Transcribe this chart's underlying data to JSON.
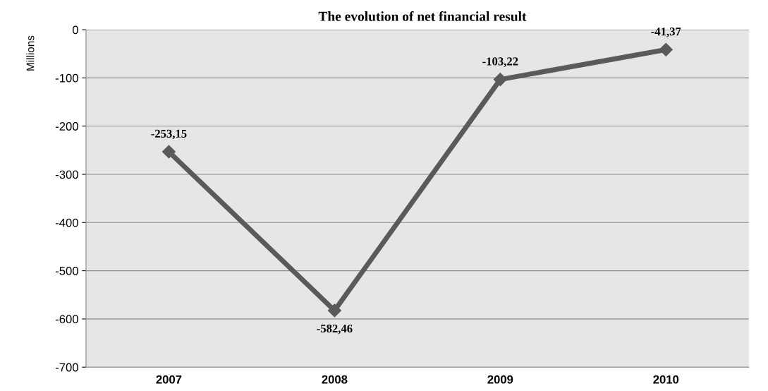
{
  "chart_data": {
    "type": "line",
    "title": "The evolution of net financial result",
    "ylabel": "Millions",
    "categories": [
      "2007",
      "2008",
      "2009",
      "2010"
    ],
    "series": [
      {
        "color": "#5a5a5a",
        "values": [
          -253.15,
          -582.46,
          -103.22,
          -41.37
        ],
        "value_labels": [
          "-253,15",
          "-582,46",
          "-103,22",
          "-41,37"
        ]
      }
    ],
    "ylim": [
      -700,
      0
    ],
    "yticks": [
      -700,
      -600,
      -500,
      -400,
      -300,
      -200,
      -100,
      0
    ],
    "grid": "y",
    "marker": "diamond",
    "line_style": "solid",
    "legend": false
  }
}
